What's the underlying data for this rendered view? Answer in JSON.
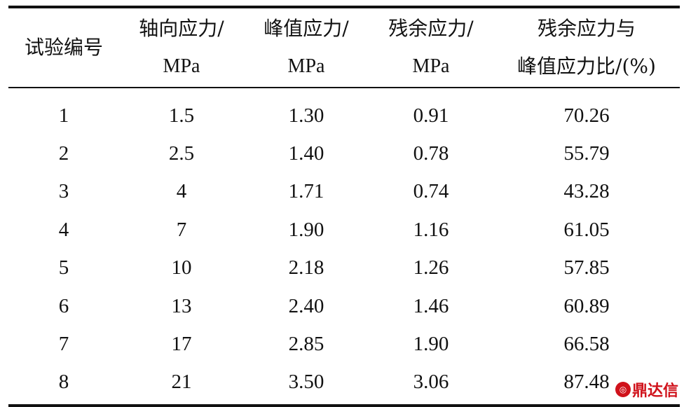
{
  "table": {
    "headers": [
      {
        "line1": "试验编号",
        "line2": ""
      },
      {
        "line1": "轴向应力/",
        "line2": "MPa"
      },
      {
        "line1": "峰值应力/",
        "line2": "MPa"
      },
      {
        "line1": "残余应力/",
        "line2": "MPa"
      },
      {
        "line1": "残余应力与",
        "line2": "峰值应力比/(%)"
      }
    ],
    "rows": [
      [
        "1",
        "1.5",
        "1.30",
        "0.91",
        "70.26"
      ],
      [
        "2",
        "2.5",
        "1.40",
        "0.78",
        "55.79"
      ],
      [
        "3",
        "4",
        "1.71",
        "0.74",
        "43.28"
      ],
      [
        "4",
        "7",
        "1.90",
        "1.16",
        "61.05"
      ],
      [
        "5",
        "10",
        "2.18",
        "1.26",
        "57.85"
      ],
      [
        "6",
        "13",
        "2.40",
        "1.46",
        "60.89"
      ],
      [
        "7",
        "17",
        "2.85",
        "1.90",
        "66.58"
      ],
      [
        "8",
        "21",
        "3.50",
        "3.06",
        "87.48"
      ]
    ]
  },
  "watermark": {
    "text": "鼎达信",
    "color": "#d0121b",
    "icon": "logo-icon"
  }
}
